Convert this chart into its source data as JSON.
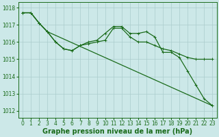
{
  "background_color": "#cce8e8",
  "grid_color": "#aacccc",
  "line_color": "#1a6b1a",
  "xlabel": "Graphe pression niveau de la mer (hPa)",
  "xlabel_fontsize": 7,
  "xlim": [
    -0.5,
    23.5
  ],
  "ylim": [
    1011.6,
    1018.3
  ],
  "yticks": [
    1012,
    1013,
    1014,
    1015,
    1016,
    1017,
    1018
  ],
  "xticks": [
    0,
    1,
    2,
    3,
    4,
    5,
    6,
    7,
    8,
    9,
    10,
    11,
    12,
    13,
    14,
    15,
    16,
    17,
    18,
    19,
    20,
    21,
    22,
    23
  ],
  "line1_x": [
    0,
    1,
    2,
    3,
    4,
    5,
    6,
    7,
    8,
    9,
    10,
    11,
    12,
    13,
    14,
    15,
    16,
    17,
    18,
    19,
    20,
    21,
    22,
    23
  ],
  "line1_y": [
    1017.7,
    1017.7,
    1017.1,
    1016.6,
    1016.0,
    1015.6,
    1015.5,
    1015.8,
    1015.9,
    1016.0,
    1016.1,
    1016.8,
    1016.8,
    1016.3,
    1016.0,
    1016.0,
    1015.8,
    1015.6,
    1015.5,
    1015.3,
    1015.1,
    1015.0,
    1015.0,
    1015.0
  ],
  "line2_x": [
    0,
    1,
    2,
    3,
    4,
    5,
    6,
    7,
    8,
    9,
    10,
    11,
    12,
    13,
    14,
    15,
    16,
    17,
    18,
    19,
    20,
    21,
    22,
    23
  ],
  "line2_y": [
    1017.7,
    1017.7,
    1017.1,
    1016.6,
    1016.0,
    1015.6,
    1015.5,
    1015.8,
    1016.0,
    1016.1,
    1016.5,
    1016.9,
    1016.9,
    1016.5,
    1016.5,
    1016.6,
    1016.3,
    1015.4,
    1015.4,
    1015.1,
    1014.3,
    1013.5,
    1012.7,
    1012.3
  ],
  "line3_x": [
    0,
    1,
    2,
    3,
    23
  ],
  "line3_y": [
    1017.7,
    1017.7,
    1017.1,
    1016.6,
    1012.3
  ],
  "tick_fontsize": 5.5,
  "linewidth": 0.9,
  "markersize": 2.2
}
